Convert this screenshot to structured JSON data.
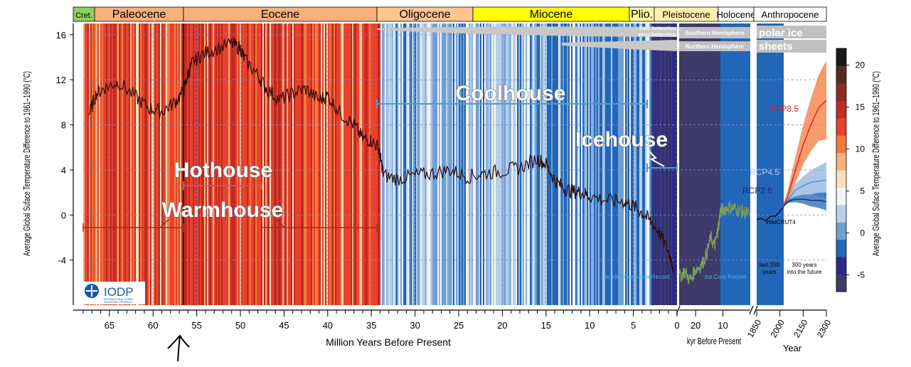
{
  "chart_data": {
    "type": "line",
    "title": "",
    "ylabel_left": "Average Global Suface Temperature Difference to 1961–1990 (°C)",
    "ylabel_right": "Average Global Suface Temperature Difference to 1961–1990 (°C)",
    "ylim": [
      -8,
      17
    ],
    "y_ticks": [
      "16",
      "12",
      "8",
      "4",
      "0",
      "-4"
    ],
    "epochs": [
      {
        "name": "Cret.",
        "start": 68,
        "end": 66,
        "color": "#8fcf5a"
      },
      {
        "name": "Paleocene",
        "start": 66,
        "end": 56,
        "color": "#f9b07a"
      },
      {
        "name": "Eocene",
        "start": 56,
        "end": 33.9,
        "color": "#f9b07a"
      },
      {
        "name": "Oligocene",
        "start": 33.9,
        "end": 23,
        "color": "#fdc490"
      },
      {
        "name": "Miocene",
        "start": 23,
        "end": 5.3,
        "color": "#ffff00"
      },
      {
        "name": "Plio.",
        "start": 5.3,
        "end": 2.6,
        "color": "#fff7a0"
      },
      {
        "name": "Pleistocene",
        "start": 2.6,
        "end": 0,
        "color": "#fff0b0"
      },
      {
        "name": "Holocene",
        "start": 0,
        "end": -1,
        "color": "#ffffff"
      },
      {
        "name": "Anthropocene",
        "start": -1,
        "end": -2,
        "color": "#ffffff"
      }
    ],
    "panels": [
      {
        "name": "million-years",
        "xlabel": "Million Years Before Present",
        "x_ticks": [
          "65",
          "60",
          "55",
          "50",
          "45",
          "40",
          "35",
          "30",
          "25",
          "20",
          "15",
          "10",
          "5",
          "0"
        ],
        "xlim": [
          68,
          0
        ]
      },
      {
        "name": "kyr",
        "xlabel": "kyr Before Present",
        "x_ticks": [
          "20",
          "10"
        ],
        "xlim": [
          26,
          0
        ]
      },
      {
        "name": "years",
        "xlabel": "Year",
        "x_ticks": [
          "1850",
          "2000",
          "2150",
          "2300"
        ],
        "xlim": [
          1850,
          2300
        ]
      }
    ],
    "series": [
      {
        "name": "Benthic Deep-Sea Record",
        "x_unit": "Ma",
        "x": [
          67.3,
          66.5,
          65.5,
          64,
          62,
          60.5,
          59,
          57.5,
          56.5,
          56,
          55.5,
          54.5,
          53,
          51,
          50,
          49.5,
          48,
          47,
          45.5,
          44,
          42.5,
          41,
          40,
          38.5,
          37,
          36,
          35,
          34.2,
          33.9,
          33.6,
          32,
          30,
          28,
          26,
          24,
          22,
          20,
          18,
          16,
          15,
          14,
          13,
          12,
          11,
          10,
          8,
          6,
          5,
          4,
          3,
          2,
          1,
          0.3
        ],
        "y": [
          9,
          10.8,
          11.3,
          11.8,
          10.5,
          9.5,
          9.2,
          10,
          11,
          12.5,
          13.5,
          14.2,
          14.7,
          15.2,
          14.8,
          13.8,
          12.4,
          11.2,
          10.2,
          10.8,
          11.2,
          10.2,
          10.6,
          9,
          8,
          6.8,
          6.6,
          6,
          4.8,
          3.5,
          3.2,
          3.5,
          3.7,
          4,
          3.4,
          3.7,
          3.9,
          4.2,
          5,
          4.5,
          3.1,
          2.4,
          2.1,
          2,
          1.7,
          1.3,
          1.2,
          0.8,
          0.2,
          -0.6,
          -1.6,
          -3.2,
          -4.8
        ]
      },
      {
        "name": "Ice Core Record",
        "x_unit": "kyr",
        "x": [
          26,
          24,
          22,
          20,
          18,
          16,
          14.5,
          13,
          12,
          11.5,
          11,
          10,
          8,
          6,
          4,
          2,
          0
        ],
        "y": [
          -5.5,
          -5,
          -5.8,
          -4.8,
          -4.5,
          -3.5,
          -2,
          -2.8,
          -1.5,
          -0.8,
          0.3,
          0.5,
          0.7,
          0.6,
          0.4,
          0.2,
          0
        ]
      },
      {
        "name": "HadCRUT4",
        "x_unit": "year",
        "x": [
          1850,
          1880,
          1910,
          1940,
          1970,
          2000,
          2015
        ],
        "y": [
          -0.4,
          -0.3,
          -0.5,
          -0.1,
          -0.1,
          0.3,
          0.6
        ]
      },
      {
        "name": "RCP8.5",
        "x_unit": "year",
        "x": [
          2015,
          2050,
          2100,
          2150,
          2200,
          2250,
          2300
        ],
        "y": [
          0.6,
          1.6,
          4,
          6.2,
          8,
          9.5,
          10.2
        ]
      },
      {
        "name": "RCP4.5",
        "x_unit": "year",
        "x": [
          2015,
          2050,
          2100,
          2150,
          2200,
          2250,
          2300
        ],
        "y": [
          0.6,
          1.3,
          2.2,
          2.6,
          2.9,
          3,
          3.1
        ]
      },
      {
        "name": "RCP2.6",
        "x_unit": "year",
        "x": [
          2015,
          2050,
          2100,
          2150,
          2200,
          2250,
          2300
        ],
        "y": [
          0.6,
          1.2,
          1.4,
          1.4,
          1.3,
          1.3,
          1.2
        ]
      }
    ],
    "colorbar": {
      "ticks": [
        "20",
        "15",
        "10",
        "5",
        "0",
        "-5"
      ],
      "range": [
        -7,
        22
      ],
      "colors": [
        "#3e3a6a",
        "#2a2b87",
        "#2266b8",
        "#6d9fd5",
        "#b7cfe8",
        "#f5f5f5",
        "#fde0b8",
        "#f9b07a",
        "#f47a3c",
        "#e8412f",
        "#bf2b22",
        "#8c2b24",
        "#5a2a22",
        "#1a1a1a"
      ]
    },
    "annotations": {
      "hothouse": "Hothouse",
      "warmhouse": "Warmhouse",
      "coolhouse": "Coolhouse",
      "icehouse": "Icehouse",
      "polar_ice": "polar ice",
      "sheets": "sheets",
      "east_antarctica": "East Antarctica",
      "west_antarctica": "West Antarctica",
      "southern_hemisphere": "Southern Hemisphere",
      "northern_hemisphere": "Northern Hemisphere",
      "benthic_label": "Benthic Deep-Sea Record",
      "ice_core_label": "Ice Core Record",
      "hadcrut": "HadCRUT4",
      "last150": "last 150",
      "years1": "years",
      "future1": "300 years",
      "future2": "into the future",
      "rcp85": "RCP8.5",
      "rcp45": "RCP4.5",
      "rcp26": "RCP2.6",
      "logo": "IODP",
      "logo_sub1": "INTERNATIONAL OCEAN",
      "logo_sub2": "DISCOVERY PROGRAM"
    },
    "colors": {
      "hot_strip": "#e8412f",
      "cool_strip": "#6d9fd5",
      "benthic_line": "#2a0a08",
      "ice_core_line": "#7d9e5a",
      "hothouse_bracket": "#c05a5a",
      "coolhouse_bracket": "#4f9fc0"
    }
  }
}
